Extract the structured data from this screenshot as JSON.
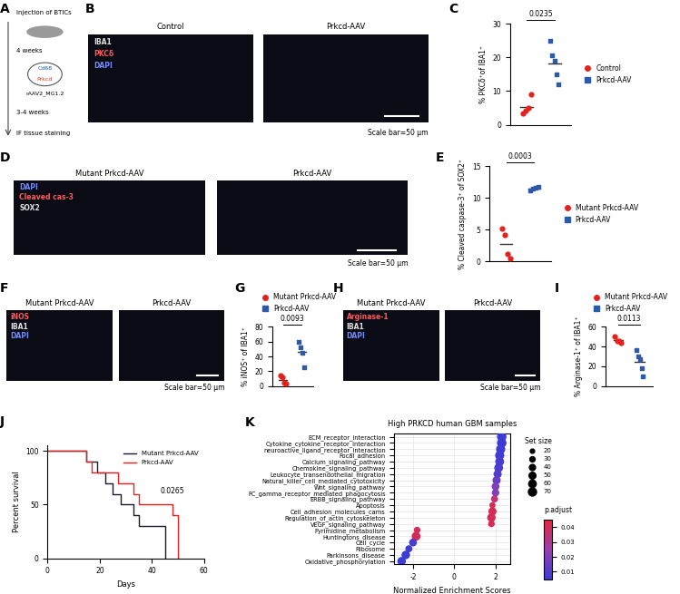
{
  "chart_data": [
    {
      "panel": "C",
      "type": "dot_plot",
      "ylabel": "% PKCδ⁺of IBA1⁺",
      "ylim": [
        0,
        30
      ],
      "yticks": [
        0,
        10,
        20,
        30
      ],
      "p_value": 0.0235,
      "legend": "right",
      "tick_labels": "y",
      "series": [
        {
          "name": "Control",
          "color": "#e4211c",
          "marker": "circle",
          "values": [
            3.5,
            4.2,
            5.0,
            9.0
          ],
          "mean": 5.4
        },
        {
          "name": "Prkcd-AAV",
          "color": "#2b5ba8",
          "marker": "square",
          "values": [
            25.0,
            20.5,
            19.0,
            15.0,
            12.0
          ],
          "mean": 18.3
        }
      ]
    },
    {
      "panel": "E",
      "type": "dot_plot",
      "ylabel": "% Cleaved caspase-3⁺ of SOX2⁺",
      "ylim": [
        0,
        15
      ],
      "yticks": [
        0,
        5,
        10,
        15
      ],
      "p_value": 0.0003,
      "legend": "right",
      "tick_labels": "y",
      "series": [
        {
          "name": "Mutant Prkcd-AAV",
          "color": "#e4211c",
          "marker": "circle",
          "values": [
            5.2,
            4.2,
            1.2,
            0.4
          ],
          "mean": 2.75
        },
        {
          "name": "Prkcd-AAV",
          "color": "#2b5ba8",
          "marker": "square",
          "values": [
            11.2,
            11.5,
            11.6,
            11.7
          ],
          "mean": 11.5
        }
      ]
    },
    {
      "panel": "G",
      "type": "dot_plot",
      "ylabel": "% iNOS⁺ of IBA1⁺",
      "ylim": [
        0,
        80
      ],
      "yticks": [
        0,
        20,
        40,
        60,
        80
      ],
      "p_value": 0.0093,
      "legend": "top",
      "tick_labels": "y",
      "series": [
        {
          "name": "Mutant Prkcd-AAV",
          "color": "#e4211c",
          "marker": "circle",
          "values": [
            14,
            12,
            5,
            3
          ],
          "mean": 8.5
        },
        {
          "name": "Prkcd-AAV",
          "color": "#2b5ba8",
          "marker": "square",
          "values": [
            60,
            52,
            45,
            25
          ],
          "mean": 45.5
        }
      ]
    },
    {
      "panel": "I",
      "type": "dot_plot",
      "ylabel": "% Arginase-1⁺ of IBA1⁺",
      "ylim": [
        0,
        60
      ],
      "yticks": [
        0,
        20,
        40,
        60
      ],
      "p_value": 0.0113,
      "legend": "top",
      "tick_labels": "y",
      "series": [
        {
          "name": "Mutant Prkcd-AAV",
          "color": "#e4211c",
          "marker": "circle",
          "values": [
            50,
            46,
            46,
            44
          ],
          "mean": 46.5
        },
        {
          "name": "Prkcd-AAV",
          "color": "#2b5ba8",
          "marker": "square",
          "values": [
            36,
            30,
            27,
            18,
            10
          ],
          "mean": 24.2
        }
      ]
    },
    {
      "panel": "J",
      "type": "survival",
      "xlabel": "Days",
      "ylabel": "Percent survival",
      "xlim": [
        0,
        60
      ],
      "xticks": [
        0,
        20,
        40,
        60
      ],
      "ylim": [
        0,
        105
      ],
      "yticks": [
        0,
        50,
        100
      ],
      "p_value": 0.0265,
      "legend": "upper right",
      "series": [
        {
          "name": "Mutant Prkcd-AAV",
          "color": "#1a1a2e",
          "x": [
            0,
            15,
            19,
            22,
            25,
            28,
            33,
            35,
            45
          ],
          "values": [
            100,
            90,
            80,
            70,
            60,
            50,
            40,
            30,
            0
          ]
        },
        {
          "name": "Prkcd-AAV",
          "color": "#e4211c",
          "x": [
            0,
            15,
            17,
            27,
            33,
            35,
            48,
            50
          ],
          "values": [
            100,
            90,
            80,
            70,
            60,
            50,
            40,
            0
          ]
        }
      ]
    },
    {
      "panel": "K",
      "type": "scatter",
      "title": "High PRKCD human GBM samples",
      "xlabel": "Normalized Enrichment Scores",
      "categories": [
        "ECM_receptor_interaction",
        "Cytokine_cytokine_receptor_interaction",
        "neuroactive_ligand_receptor_interaction",
        "Focal_adhesion",
        "Calcium_signaling_pathway",
        "Chemokine_signaling_pathway",
        "Leukocyte_transendothelial_migration",
        "Natural_killer_cell_mediated_cytotoxicity",
        "Wnt_signaling_pathway",
        "FC_gamma_receptor_mediated_phagocytosis",
        "ERBB_signaling_pathway",
        "Apoptosis",
        "Cell_adhesion_molecules_cams",
        "Regulation_of_actin_cytoskeleton",
        "VEGF_signaling_pathway",
        "Pyrimidine_metabolism",
        "Huntingtons_disease",
        "Cell_cycle",
        "Ribosome",
        "Parkinsons_disease",
        "Oxidative_phosphorylation"
      ],
      "values": [
        2.3,
        2.3,
        2.25,
        2.2,
        2.2,
        2.15,
        2.1,
        2.05,
        2.0,
        2.0,
        1.95,
        1.85,
        1.85,
        1.8,
        1.8,
        -1.8,
        -1.85,
        -2.0,
        -2.2,
        -2.35,
        -2.55
      ],
      "set_size": [
        70,
        70,
        65,
        65,
        60,
        60,
        50,
        50,
        45,
        40,
        35,
        25,
        50,
        55,
        30,
        30,
        60,
        45,
        35,
        55,
        55
      ],
      "p_adjust": [
        0.005,
        0.005,
        0.006,
        0.006,
        0.008,
        0.008,
        0.01,
        0.015,
        0.02,
        0.02,
        0.035,
        0.04,
        0.04,
        0.04,
        0.04,
        0.04,
        0.04,
        0.008,
        0.006,
        0.005,
        0.005
      ],
      "xlim": [
        -2.9,
        2.7
      ],
      "xticks": [
        -2,
        0,
        2
      ],
      "grid": true,
      "size_legend": {
        "title": "Set size",
        "values": [
          20,
          30,
          40,
          50,
          60,
          70
        ]
      },
      "colorbar": {
        "title": "p.adjust",
        "range": [
          0.005,
          0.045
        ],
        "ticks": [
          0.01,
          0.02,
          0.03,
          0.04
        ]
      }
    }
  ],
  "panels": [
    {
      "panel": "A",
      "type": "schematic",
      "steps": [
        "Injection of BTICs",
        "4 weeks",
        "3-4 weeks",
        "IF tissue staining"
      ],
      "plasmid": {
        "name": "rAAV2_MG1.2",
        "promoter": "Cd68",
        "gene": "Prkcd"
      }
    },
    {
      "panel": "B",
      "type": "images",
      "images": [
        "Control",
        "Prkcd-AAV"
      ],
      "channels": [
        {
          "name": "IBA1",
          "color": "#e0e0e0"
        },
        {
          "name": "PKCδ",
          "color": "#ff5a5a"
        },
        {
          "name": "DAPI",
          "color": "#6f8cff"
        }
      ],
      "scale_bar": "Scale bar=50 μm"
    },
    {
      "panel": "D",
      "type": "images",
      "images": [
        "Mutant Prkcd-AAV",
        "Prkcd-AAV"
      ],
      "channels": [
        {
          "name": "DAPI",
          "color": "#6f8cff"
        },
        {
          "name": "Cleaved cas-3",
          "color": "#ff5a5a"
        },
        {
          "name": "SOX2",
          "color": "#e0e0e0"
        }
      ],
      "scale_bar": "Scale bar=50 μm"
    },
    {
      "panel": "F",
      "type": "images",
      "images": [
        "Mutant Prkcd-AAV",
        "Prkcd-AAV"
      ],
      "channels": [
        {
          "name": "iNOS",
          "color": "#ff5a5a"
        },
        {
          "name": "IBA1",
          "color": "#e0e0e0"
        },
        {
          "name": "DAPI",
          "color": "#6f8cff"
        }
      ],
      "scale_bar": "Scale bar=50 μm"
    },
    {
      "panel": "H",
      "type": "images",
      "images": [
        "Mutant Prkcd-AAV",
        "Prkcd-AAV"
      ],
      "channels": [
        {
          "name": "Arginase-1",
          "color": "#ff5a5a"
        },
        {
          "name": "IBA1",
          "color": "#e0e0e0"
        },
        {
          "name": "DAPI",
          "color": "#6f8cff"
        }
      ],
      "scale_bar": "Scale bar=50 μm"
    }
  ]
}
